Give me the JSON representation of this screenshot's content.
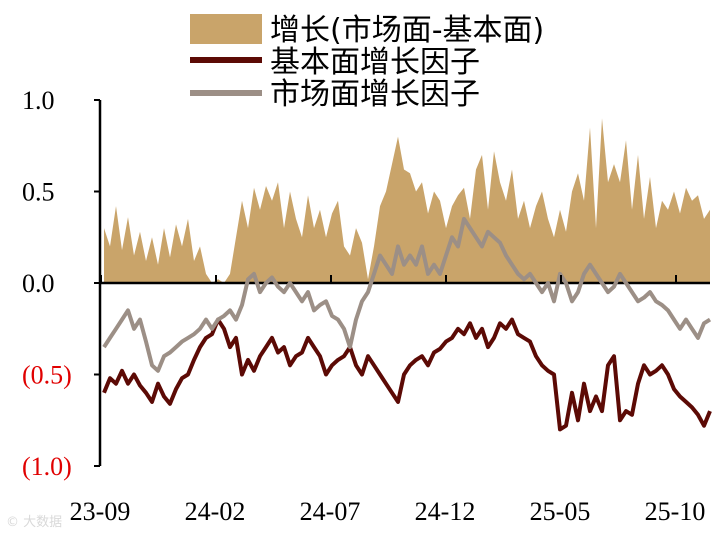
{
  "chart_data": {
    "type": "line",
    "title": "",
    "xlabel": "",
    "ylabel": "",
    "ylim": [
      -1.0,
      1.0
    ],
    "x_ticks": [
      "23-09",
      "24-02",
      "24-07",
      "24-12",
      "25-05",
      "25-10"
    ],
    "y_ticks": [
      {
        "value": 1.0,
        "label": "1.0",
        "color": "#000000"
      },
      {
        "value": 0.5,
        "label": "0.5",
        "color": "#000000"
      },
      {
        "value": 0.0,
        "label": "0.0",
        "color": "#000000"
      },
      {
        "value": -0.5,
        "label": "(0.5)",
        "color": "#e00000"
      },
      {
        "value": -1.0,
        "label": "(1.0)",
        "color": "#e00000"
      }
    ],
    "legend_position": "top",
    "series": [
      {
        "name": "增长(市场面-基本面)",
        "kind": "area",
        "color": "#c9a46a",
        "values": [
          0.3,
          0.2,
          0.42,
          0.18,
          0.36,
          0.15,
          0.28,
          0.12,
          0.25,
          0.1,
          0.3,
          0.14,
          0.32,
          0.2,
          0.35,
          0.12,
          0.2,
          0.05,
          0.0,
          0.02,
          0.0,
          0.05,
          0.25,
          0.45,
          0.3,
          0.52,
          0.4,
          0.53,
          0.45,
          0.55,
          0.3,
          0.5,
          0.35,
          0.25,
          0.48,
          0.3,
          0.4,
          0.25,
          0.38,
          0.45,
          0.2,
          0.15,
          0.3,
          0.22,
          0.02,
          0.2,
          0.42,
          0.5,
          0.65,
          0.8,
          0.62,
          0.6,
          0.5,
          0.55,
          0.38,
          0.5,
          0.45,
          0.3,
          0.42,
          0.48,
          0.52,
          0.35,
          0.62,
          0.7,
          0.4,
          0.72,
          0.55,
          0.45,
          0.62,
          0.35,
          0.45,
          0.3,
          0.42,
          0.5,
          0.35,
          0.25,
          0.4,
          0.28,
          0.5,
          0.6,
          0.45,
          0.85,
          0.3,
          0.9,
          0.55,
          0.65,
          0.55,
          0.78,
          0.4,
          0.7,
          0.35,
          0.58,
          0.3,
          0.45,
          0.4,
          0.5,
          0.38,
          0.52,
          0.45,
          0.48,
          0.35,
          0.4
        ]
      },
      {
        "name": "基本面增长因子",
        "kind": "line",
        "color": "#5c0a05",
        "values": [
          -0.6,
          -0.52,
          -0.55,
          -0.48,
          -0.55,
          -0.5,
          -0.56,
          -0.6,
          -0.65,
          -0.55,
          -0.62,
          -0.66,
          -0.58,
          -0.52,
          -0.5,
          -0.42,
          -0.35,
          -0.3,
          -0.28,
          -0.2,
          -0.25,
          -0.35,
          -0.3,
          -0.5,
          -0.42,
          -0.48,
          -0.4,
          -0.35,
          -0.3,
          -0.38,
          -0.35,
          -0.45,
          -0.4,
          -0.38,
          -0.3,
          -0.35,
          -0.4,
          -0.5,
          -0.45,
          -0.42,
          -0.4,
          -0.35,
          -0.45,
          -0.5,
          -0.4,
          -0.45,
          -0.5,
          -0.55,
          -0.6,
          -0.65,
          -0.5,
          -0.45,
          -0.42,
          -0.4,
          -0.45,
          -0.38,
          -0.36,
          -0.32,
          -0.3,
          -0.25,
          -0.28,
          -0.22,
          -0.3,
          -0.25,
          -0.35,
          -0.3,
          -0.22,
          -0.25,
          -0.2,
          -0.28,
          -0.3,
          -0.32,
          -0.4,
          -0.45,
          -0.48,
          -0.5,
          -0.8,
          -0.78,
          -0.6,
          -0.75,
          -0.55,
          -0.7,
          -0.62,
          -0.7,
          -0.45,
          -0.4,
          -0.75,
          -0.7,
          -0.72,
          -0.55,
          -0.45,
          -0.5,
          -0.48,
          -0.45,
          -0.5,
          -0.58,
          -0.62,
          -0.65,
          -0.68,
          -0.72,
          -0.78,
          -0.7
        ]
      },
      {
        "name": "市场面增长因子",
        "kind": "line",
        "color": "#9c8f86",
        "values": [
          -0.35,
          -0.3,
          -0.25,
          -0.2,
          -0.15,
          -0.25,
          -0.2,
          -0.32,
          -0.45,
          -0.48,
          -0.4,
          -0.38,
          -0.35,
          -0.32,
          -0.3,
          -0.28,
          -0.25,
          -0.2,
          -0.25,
          -0.2,
          -0.18,
          -0.15,
          -0.2,
          -0.12,
          0.02,
          0.05,
          -0.05,
          0.0,
          0.03,
          -0.02,
          -0.05,
          0.0,
          -0.05,
          -0.1,
          -0.05,
          -0.15,
          -0.12,
          -0.1,
          -0.18,
          -0.2,
          -0.25,
          -0.35,
          -0.2,
          -0.1,
          -0.05,
          0.05,
          0.15,
          0.1,
          0.05,
          0.2,
          0.1,
          0.15,
          0.1,
          0.2,
          0.05,
          0.1,
          0.05,
          0.15,
          0.25,
          0.2,
          0.35,
          0.3,
          0.25,
          0.2,
          0.28,
          0.25,
          0.22,
          0.15,
          0.1,
          0.05,
          0.02,
          0.05,
          0.0,
          -0.05,
          0.0,
          -0.1,
          0.05,
          0.0,
          -0.1,
          -0.05,
          0.05,
          0.1,
          0.05,
          0.0,
          -0.05,
          -0.02,
          0.05,
          0.0,
          -0.05,
          -0.1,
          -0.08,
          -0.05,
          -0.1,
          -0.12,
          -0.15,
          -0.2,
          -0.25,
          -0.2,
          -0.25,
          -0.3,
          -0.22,
          -0.2
        ]
      }
    ]
  }
}
